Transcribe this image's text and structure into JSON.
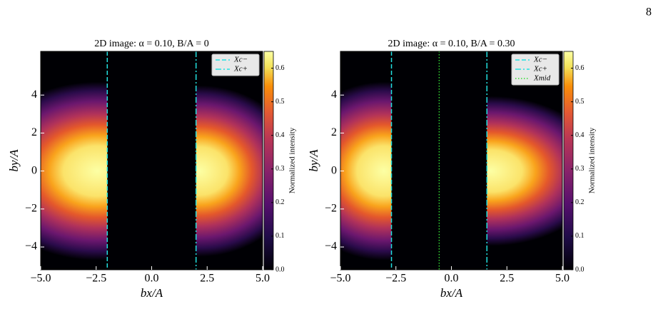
{
  "page_number": "8",
  "chart_data": [
    {
      "type": "heatmap",
      "title": "2D image: α = 0.10, B/A = 0",
      "x_label": "bx/A",
      "y_label": "by/A",
      "xlim": [
        -5,
        5
      ],
      "ylim": [
        -5.2,
        6.3
      ],
      "xticks": [
        {
          "value": -5,
          "label": "−5.0"
        },
        {
          "value": -2.5,
          "label": "−2.5"
        },
        {
          "value": 0,
          "label": "0.0"
        },
        {
          "value": 2.5,
          "label": "2.5"
        },
        {
          "value": 5,
          "label": "5.0"
        }
      ],
      "yticks": [
        {
          "value": -4,
          "label": "−4"
        },
        {
          "value": -2,
          "label": "−2"
        },
        0,
        2,
        4
      ],
      "colorbar": {
        "label": "Normalized intensity",
        "lim": [
          0,
          0.65
        ],
        "ticks": [
          {
            "value": 0,
            "label": "0.0"
          },
          0.1,
          0.2,
          0.3,
          0.4,
          0.5,
          0.6
        ]
      },
      "series": [
        {
          "name": "Xc−",
          "x": -2,
          "color": "#22e0e0",
          "linestyle": "dashed"
        },
        {
          "name": "Xc+",
          "x": 2,
          "color": "#22e0e0",
          "linestyle": "dashdot"
        }
      ]
    },
    {
      "type": "heatmap",
      "title": "2D image: α = 0.10, B/A = 0.30",
      "x_label": "bx/A",
      "y_label": "by/A",
      "xlim": [
        -5,
        5
      ],
      "ylim": [
        -5.2,
        6.3
      ],
      "xticks": [
        {
          "value": -5,
          "label": "−5.0"
        },
        {
          "value": -2.5,
          "label": "−2.5"
        },
        {
          "value": 0,
          "label": "0.0"
        },
        {
          "value": 2.5,
          "label": "2.5"
        },
        {
          "value": 5,
          "label": "5.0"
        }
      ],
      "yticks": [
        {
          "value": -4,
          "label": "−4"
        },
        {
          "value": -2,
          "label": "−2"
        },
        0,
        2,
        4
      ],
      "colorbar": {
        "label": "Normalized intensity",
        "lim": [
          0,
          0.65
        ],
        "ticks": [
          {
            "value": 0,
            "label": "0.0"
          },
          0.1,
          0.2,
          0.3,
          0.4,
          0.5,
          0.6
        ]
      },
      "series": [
        {
          "name": "Xc−",
          "x": -2.7,
          "color": "#22e0e0",
          "linestyle": "dashed"
        },
        {
          "name": "Xc+",
          "x": 1.6,
          "color": "#22e0e0",
          "linestyle": "dashdot"
        },
        {
          "name": "Xmid",
          "x": -0.55,
          "color": "#33dd33",
          "linestyle": "dotted"
        }
      ]
    }
  ]
}
